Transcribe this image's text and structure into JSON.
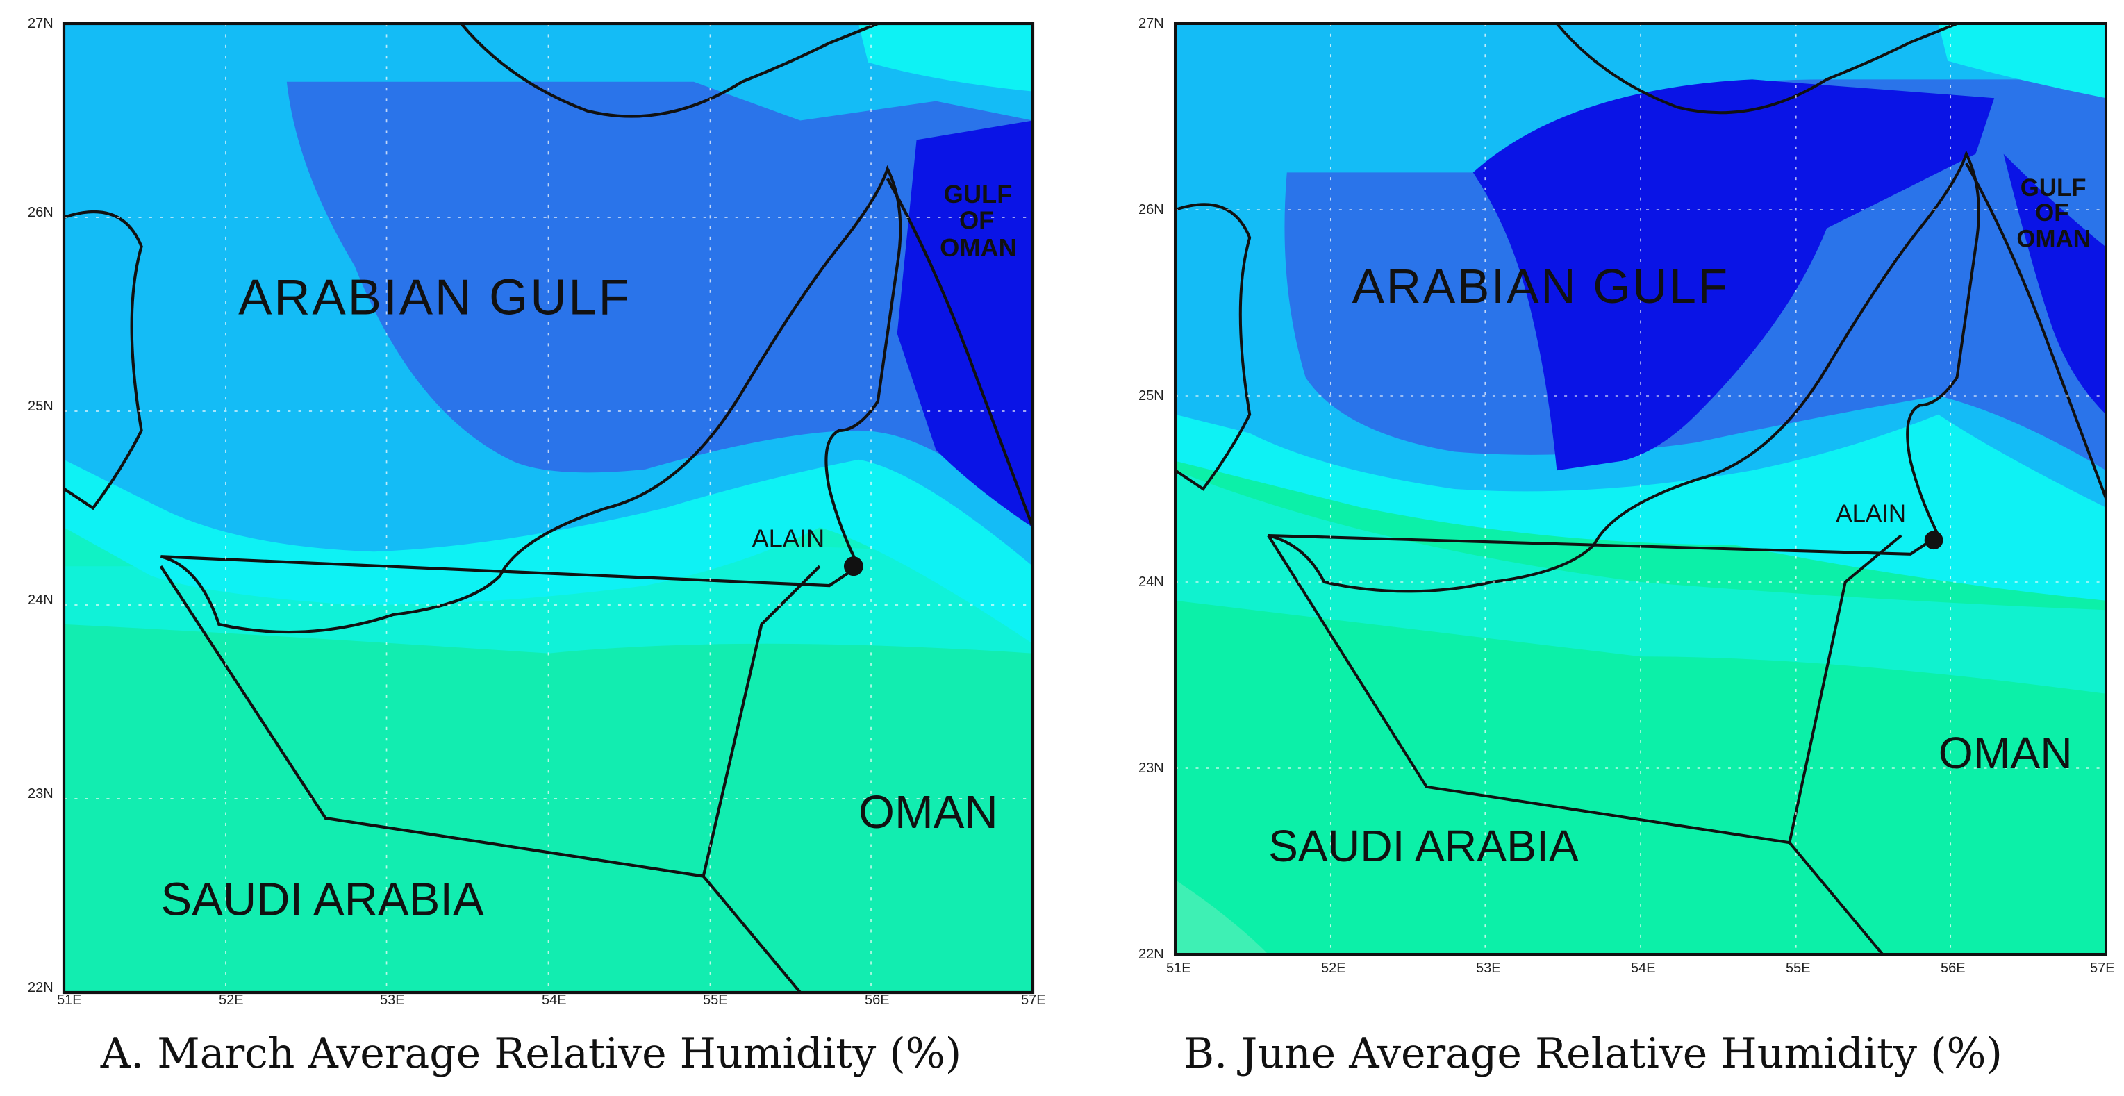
{
  "panels": [
    {
      "caption": "A. March Average Relative Humidity (%)",
      "x_ticks": [
        "51E",
        "52E",
        "53E",
        "54E",
        "55E",
        "56E",
        "57E"
      ],
      "y_ticks": [
        "22N",
        "23N",
        "24N",
        "25N",
        "26N",
        "27N"
      ],
      "labels": {
        "arabian_gulf": "ARABIAN GULF",
        "gulf": "GULF",
        "of": "OF",
        "oman_sea": "OMAN",
        "oman": "OMAN",
        "saudi_arabia": "SAUDI ARABIA",
        "alain": "ALAIN"
      }
    },
    {
      "caption": "B. June Average Relative Humidity (%)",
      "x_ticks": [
        "51E",
        "52E",
        "53E",
        "54E",
        "55E",
        "56E",
        "57E"
      ],
      "y_ticks": [
        "22N",
        "23N",
        "24N",
        "25N",
        "26N",
        "27N"
      ],
      "labels": {
        "arabian_gulf": "ARABIAN GULF",
        "gulf": "GULF",
        "of": "OF",
        "oman_sea": "OMAN",
        "oman": "OMAN",
        "saudi_arabia": "SAUDI ARABIA",
        "alain": "ALAIN"
      }
    }
  ],
  "colors": {
    "deep_blue": "#0a14e6",
    "dark_blue": "#2a74ea",
    "mid_blue": "#14bcf6",
    "cyan": "#0ef2f4",
    "aqua": "#10f2cf",
    "sea_green": "#0cf0a8",
    "land_green": "#22e7a1"
  }
}
